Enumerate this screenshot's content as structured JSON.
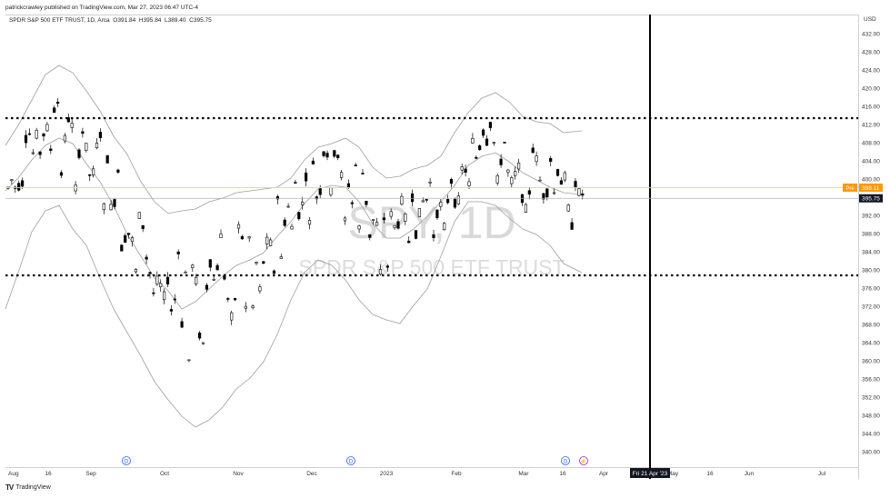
{
  "header": {
    "publisher": "patrickcrawley published on TradingView.com, Mar 27, 2023 06:47 UTC-4",
    "symbol": "SPDR S&P 500 ETF TRUST, 1D, Arca",
    "ohlc": "O391.84  H395.84  L389.40  C395.75"
  },
  "watermark": {
    "big": "SPY, 1D",
    "sub": "SPDR S&P 500 ETF TRUST"
  },
  "axis": {
    "currency": "USD",
    "price_ticks": [
      "432.00",
      "428.00",
      "424.00",
      "420.00",
      "416.00",
      "412.00",
      "408.00",
      "404.00",
      "400.00",
      "396.00",
      "392.00",
      "388.00",
      "384.00",
      "380.00",
      "376.00",
      "372.00",
      "368.00",
      "364.00",
      "360.00",
      "356.00",
      "352.00",
      "348.00",
      "344.00",
      "340.00"
    ],
    "time_ticks": [
      "Aug",
      "16",
      "Sep",
      "Oct",
      "Nov",
      "Dec",
      "2023",
      "Feb",
      "Mar",
      "16",
      "Apr",
      "May",
      "16",
      "Jun",
      "Jul"
    ],
    "crosshair_date": "Fri 21 Apr '23"
  },
  "price_badges": {
    "pre_label": "Pre",
    "pre_value": "398.11",
    "last_value": "395.75"
  },
  "markers": {
    "dividend": "D",
    "earnings": "⚡"
  },
  "footer": {
    "logo": "TV",
    "brand": "TradingView"
  },
  "colors": {
    "pre_badge": "#ff9800",
    "last_badge": "#131722",
    "bands": "#9e9e9e",
    "dividend": "#2962ff",
    "earnings": "#9c27b0"
  }
}
